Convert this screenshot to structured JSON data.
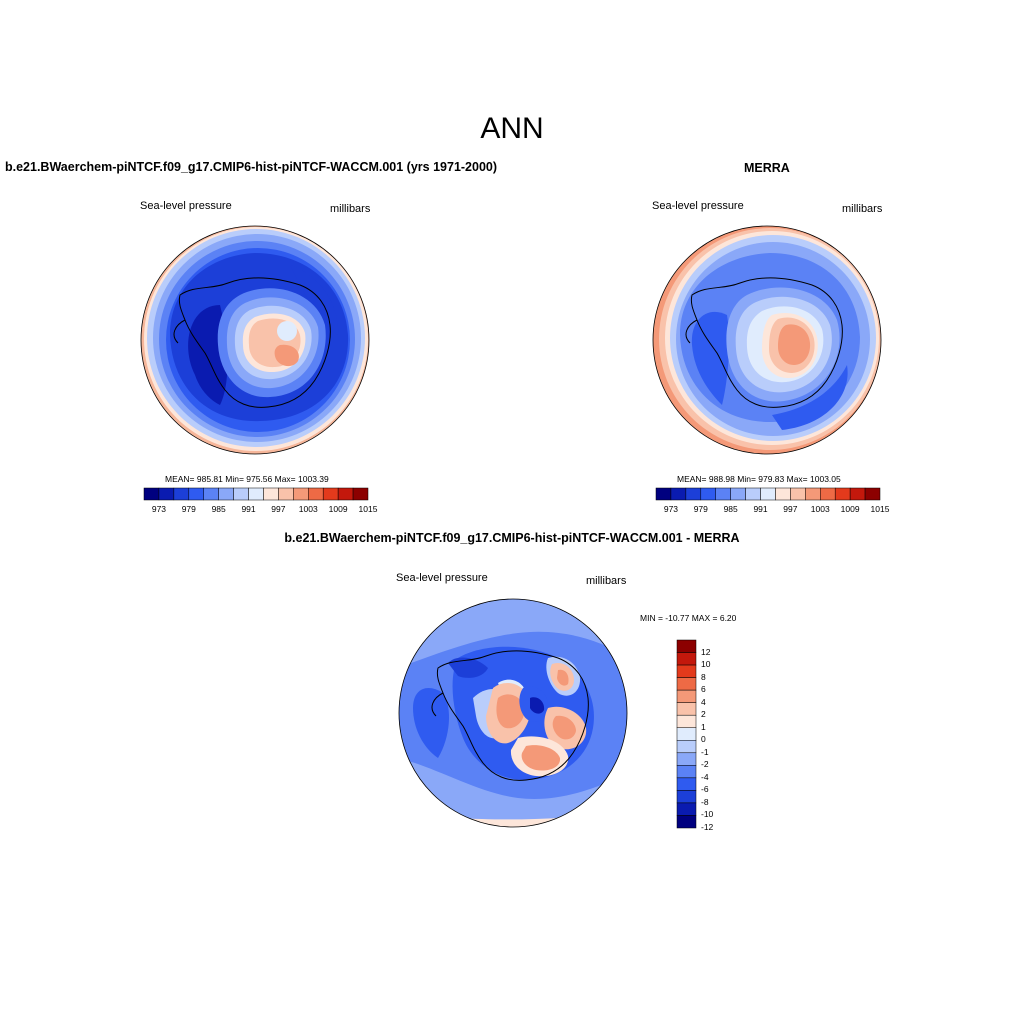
{
  "figure": {
    "title": "ANN",
    "colors": {
      "land_outline": "#000000",
      "map_border": "#000000"
    }
  },
  "panels": [
    {
      "id": "model",
      "title": "b.e21.BWaerchem-piNTCF.f09_g17.CMIP6-hist-piNTCF-WACCM.001 (yrs 1971-2000)",
      "left_label": "Sea-level pressure",
      "right_label": "millibars",
      "stats": "MEAN= 985.81   Min= 975.56   Max= 1003.39",
      "colorbar": {
        "orientation": "horizontal",
        "colors": [
          "#00007f",
          "#0a1bb0",
          "#1c3fd8",
          "#2f5bf0",
          "#5b82f5",
          "#8aa8f8",
          "#b9cdfb",
          "#e0ecfd",
          "#fde6da",
          "#f9c2aa",
          "#f49978",
          "#ee6a45",
          "#e33a1c",
          "#c3180c",
          "#8c0000"
        ],
        "ticks": [
          "973",
          "979",
          "985",
          "991",
          "997",
          "1003",
          "1009",
          "1015"
        ]
      }
    },
    {
      "id": "obs",
      "title": "MERRA",
      "left_label": "Sea-level pressure",
      "right_label": "millibars",
      "stats": "MEAN= 988.98   Min= 979.83   Max= 1003.05",
      "colorbar": {
        "orientation": "horizontal",
        "colors": [
          "#00007f",
          "#0a1bb0",
          "#1c3fd8",
          "#2f5bf0",
          "#5b82f5",
          "#8aa8f8",
          "#b9cdfb",
          "#e0ecfd",
          "#fde6da",
          "#f9c2aa",
          "#f49978",
          "#ee6a45",
          "#e33a1c",
          "#c3180c",
          "#8c0000"
        ],
        "ticks": [
          "973",
          "979",
          "985",
          "991",
          "997",
          "1003",
          "1009",
          "1015"
        ]
      }
    },
    {
      "id": "diff",
      "title": "b.e21.BWaerchem-piNTCF.f09_g17.CMIP6-hist-piNTCF-WACCM.001 - MERRA",
      "left_label": "Sea-level pressure",
      "right_label": "millibars",
      "stats": "MIN = -10.77 MAX =   6.20",
      "colorbar": {
        "orientation": "vertical",
        "colors": [
          "#00007f",
          "#0a1bb0",
          "#1c3fd8",
          "#2f5bf0",
          "#5b82f5",
          "#8aa8f8",
          "#b9cdfb",
          "#e0ecfd",
          "#fde6da",
          "#f9c2aa",
          "#f49978",
          "#ee6a45",
          "#e33a1c",
          "#c3180c",
          "#8c0000"
        ],
        "ticks": [
          "12",
          "10",
          "8",
          "6",
          "4",
          "2",
          "1",
          "0",
          "-1",
          "-2",
          "-4",
          "-6",
          "-8",
          "-10",
          "-12"
        ]
      }
    }
  ]
}
